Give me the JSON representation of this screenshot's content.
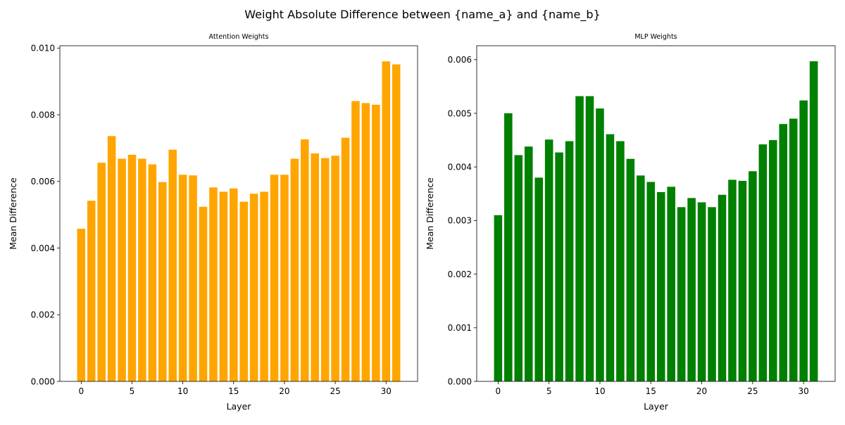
{
  "figure": {
    "suptitle": "Weight Absolute Difference between {name_a} and {name_b}"
  },
  "chart_data": [
    {
      "type": "bar",
      "title": "Attention Weights",
      "xlabel": "Layer",
      "ylabel": "Mean Difference",
      "color": "#ffa500",
      "xlim": [
        -2.1,
        33.1
      ],
      "ylim": [
        0,
        0.01007
      ],
      "xticks": [
        0,
        5,
        10,
        15,
        20,
        25,
        30
      ],
      "yticks": [
        "0.000",
        "0.002",
        "0.004",
        "0.006",
        "0.008",
        "0.010"
      ],
      "categories": [
        0,
        1,
        2,
        3,
        4,
        5,
        6,
        7,
        8,
        9,
        10,
        11,
        12,
        13,
        14,
        15,
        16,
        17,
        18,
        19,
        20,
        21,
        22,
        23,
        24,
        25,
        26,
        27,
        28,
        29,
        30,
        31
      ],
      "values": [
        0.00458,
        0.00542,
        0.00656,
        0.00736,
        0.00668,
        0.0068,
        0.00668,
        0.00651,
        0.00598,
        0.00695,
        0.0062,
        0.00618,
        0.00524,
        0.00582,
        0.00569,
        0.00579,
        0.00539,
        0.00563,
        0.00569,
        0.0062,
        0.0062,
        0.00668,
        0.00726,
        0.00684,
        0.0067,
        0.00677,
        0.00731,
        0.00841,
        0.00835,
        0.0083,
        0.0096,
        0.00951
      ]
    },
    {
      "type": "bar",
      "title": "MLP Weights",
      "xlabel": "Layer",
      "ylabel": "Mean Difference",
      "color": "#008000",
      "xlim": [
        -2.1,
        33.1
      ],
      "ylim": [
        0,
        0.00626
      ],
      "xticks": [
        0,
        5,
        10,
        15,
        20,
        25,
        30
      ],
      "yticks": [
        "0.000",
        "0.001",
        "0.002",
        "0.003",
        "0.004",
        "0.005",
        "0.006"
      ],
      "categories": [
        0,
        1,
        2,
        3,
        4,
        5,
        6,
        7,
        8,
        9,
        10,
        11,
        12,
        13,
        14,
        15,
        16,
        17,
        18,
        19,
        20,
        21,
        22,
        23,
        24,
        25,
        26,
        27,
        28,
        29,
        30,
        31
      ],
      "values": [
        0.0031,
        0.005,
        0.00422,
        0.00438,
        0.0038,
        0.00451,
        0.00427,
        0.00448,
        0.00532,
        0.00532,
        0.00509,
        0.00461,
        0.00448,
        0.00415,
        0.00384,
        0.00372,
        0.00353,
        0.00363,
        0.00325,
        0.00342,
        0.00334,
        0.00325,
        0.00348,
        0.00376,
        0.00374,
        0.00392,
        0.00442,
        0.0045,
        0.0048,
        0.0049,
        0.00524,
        0.00597
      ]
    }
  ]
}
